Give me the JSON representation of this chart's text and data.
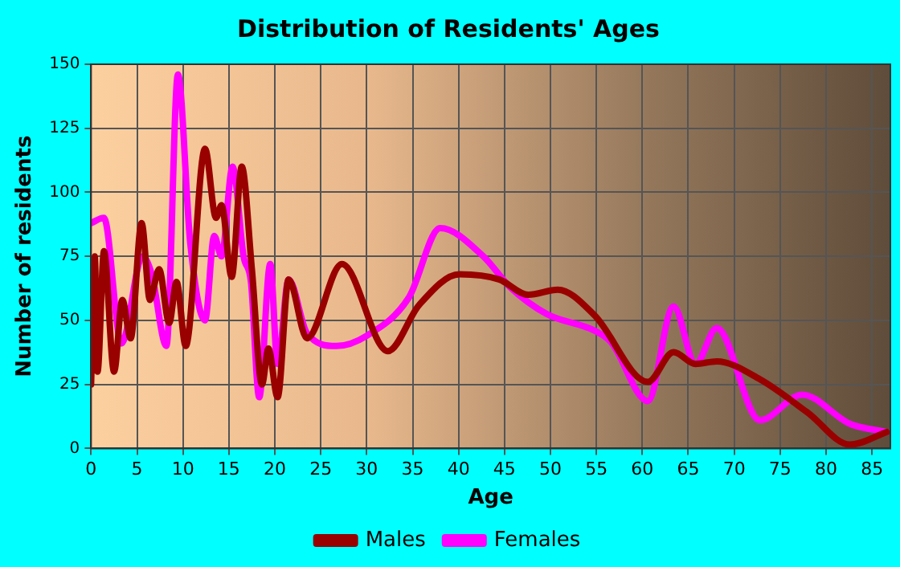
{
  "chart_data": {
    "type": "line",
    "title": "Distribution of Residents' Ages",
    "xlabel": "Age",
    "ylabel": "Number of residents",
    "xlim": [
      0,
      87
    ],
    "xticks": [
      0,
      5,
      10,
      15,
      20,
      25,
      30,
      35,
      40,
      45,
      50,
      55,
      60,
      65,
      70,
      75,
      80,
      85
    ],
    "ylim": [
      0,
      150
    ],
    "yticks": [
      0,
      25,
      50,
      75,
      100,
      125,
      150
    ],
    "grid": true,
    "legend": "bottom",
    "marker": "none",
    "line_style": "solid",
    "series": [
      {
        "name": "Males",
        "color": "#990000",
        "x": [
          0,
          0.4,
          0.7,
          1.4,
          2.5,
          3.4,
          4.3,
          5.5,
          6.4,
          7.4,
          8.5,
          9.3,
          10.3,
          12.4,
          13.6,
          14.2,
          15.3,
          16.4,
          17.5,
          18.6,
          19.3,
          20.3,
          21.5,
          23.5,
          27.3,
          32.3,
          35.7,
          40.1,
          44.4,
          47.6,
          50.8,
          54.8,
          60.6,
          63.4,
          65.8,
          68.1,
          72.8,
          78,
          82.6,
          86.6
        ],
        "values": [
          25,
          75,
          30,
          77,
          30,
          58,
          43,
          88,
          58,
          70,
          49,
          65,
          40,
          117,
          90,
          95,
          67,
          110,
          70,
          25,
          39,
          20,
          66,
          43,
          72,
          38,
          56,
          68,
          66,
          60,
          62,
          52,
          26,
          37.6,
          33,
          34,
          27,
          14,
          1.5,
          6.4
        ]
      },
      {
        "name": "Females",
        "color": "#ff00ff",
        "x": [
          0,
          1.4,
          3.3,
          5.6,
          6.6,
          8.2,
          9.45,
          10.8,
          12.4,
          13.4,
          14.2,
          15.4,
          16.6,
          17.4,
          18.3,
          19.5,
          20.3,
          21.5,
          23.5,
          26.7,
          30,
          34.6,
          38,
          42.7,
          45.6,
          49.6,
          54.8,
          56.6,
          60.6,
          63.4,
          65.8,
          68.1,
          72.8,
          77.4,
          82.6,
          86.6
        ],
        "values": [
          88,
          90,
          41,
          75,
          68,
          40,
          146,
          80,
          50,
          83,
          75,
          110,
          75,
          65,
          20,
          72,
          33,
          66,
          45,
          40,
          44,
          59,
          86,
          75,
          63,
          52.5,
          46,
          41.5,
          18.5,
          55.5,
          33,
          47,
          11,
          21,
          9.6,
          6.4
        ]
      }
    ]
  }
}
